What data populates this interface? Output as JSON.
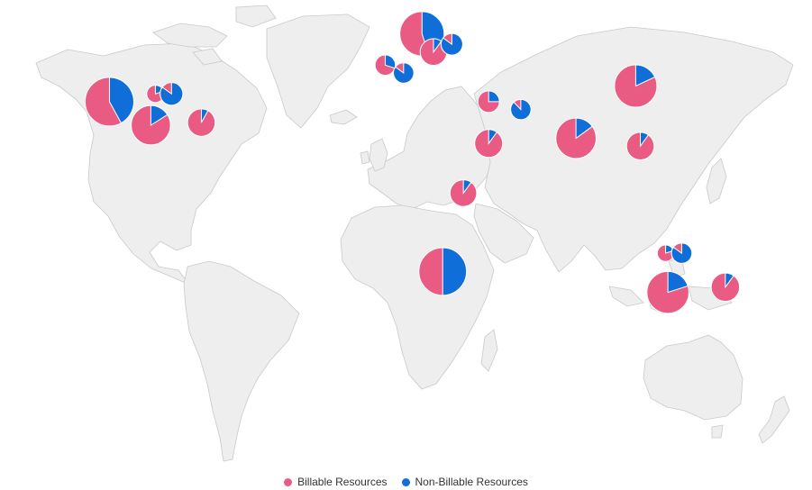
{
  "colors": {
    "billable": "#ea5b84",
    "non_billable": "#0f6ed8",
    "land": "#eeeeee",
    "border": "#c9c9c9"
  },
  "legend": {
    "billable_label": "Billable Resources",
    "non_billable_label": "Non-Billable Resources"
  },
  "chart_data": {
    "type": "pie-map",
    "legend_position": "bottom-center",
    "series": [
      {
        "name": "Billable Resources"
      },
      {
        "name": "Non-Billable Resources"
      }
    ],
    "markers": [
      {
        "id": "us-west",
        "lon": -121,
        "lat": 39,
        "total": 100,
        "billable_share": 0.58
      },
      {
        "id": "us-central-small",
        "lon": -101,
        "lat": 42,
        "total": 6,
        "billable_share": 0.8
      },
      {
        "id": "us-midwest",
        "lon": -94,
        "lat": 42,
        "total": 14,
        "billable_share": 0.15
      },
      {
        "id": "us-south",
        "lon": -103,
        "lat": 30,
        "total": 60,
        "billable_share": 0.84
      },
      {
        "id": "us-southeast",
        "lon": -81,
        "lat": 31,
        "total": 24,
        "billable_share": 0.92
      },
      {
        "id": "scandinavia",
        "lon": 15,
        "lat": 65,
        "total": 80,
        "billable_share": 0.55
      },
      {
        "id": "finland",
        "lon": 20,
        "lat": 58,
        "total": 22,
        "billable_share": 0.9
      },
      {
        "id": "russia-west",
        "lon": 28,
        "lat": 61,
        "total": 12,
        "billable_share": 0.15
      },
      {
        "id": "uk",
        "lon": -1,
        "lat": 53,
        "total": 10,
        "billable_share": 0.7
      },
      {
        "id": "poland",
        "lon": 7,
        "lat": 50,
        "total": 10,
        "billable_share": 0.15
      },
      {
        "id": "turkey-caucasus",
        "lon": 44,
        "lat": 39,
        "total": 12,
        "billable_share": 0.75
      },
      {
        "id": "central-asia",
        "lon": 58,
        "lat": 36,
        "total": 10,
        "billable_share": 0.12
      },
      {
        "id": "saudi-arabia",
        "lon": 44,
        "lat": 23,
        "total": 25,
        "billable_share": 0.9
      },
      {
        "id": "china-north",
        "lon": 108,
        "lat": 45,
        "total": 72,
        "billable_share": 0.82
      },
      {
        "id": "india",
        "lon": 82,
        "lat": 25,
        "total": 64,
        "billable_share": 0.85
      },
      {
        "id": "china-south",
        "lon": 110,
        "lat": 22,
        "total": 24,
        "billable_share": 0.9
      },
      {
        "id": "east-africa",
        "lon": 33,
        "lat": 4,
        "total": 22,
        "billable_share": 0.9
      },
      {
        "id": "southern-africa",
        "lon": 24,
        "lat": -26,
        "total": 95,
        "billable_share": 0.5
      },
      {
        "id": "australia-nw-1",
        "lon": 121,
        "lat": -19,
        "total": 5,
        "billable_share": 0.8
      },
      {
        "id": "australia-nw-2",
        "lon": 128,
        "lat": -19,
        "total": 10,
        "billable_share": 0.15
      },
      {
        "id": "australia-south",
        "lon": 122,
        "lat": -34,
        "total": 70,
        "billable_share": 0.8
      },
      {
        "id": "australia-se",
        "lon": 147,
        "lat": -32,
        "total": 26,
        "billable_share": 0.9
      }
    ]
  }
}
